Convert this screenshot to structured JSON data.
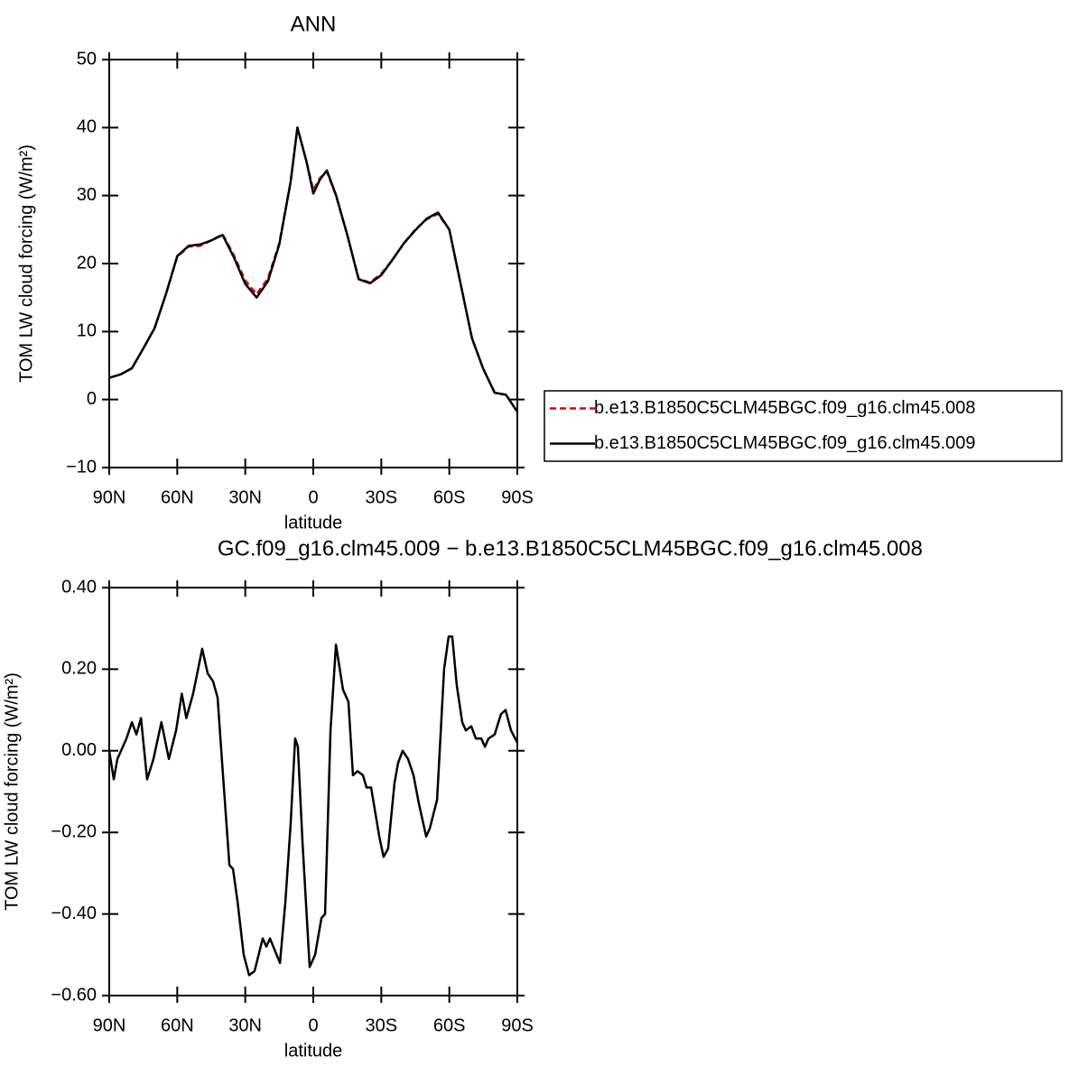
{
  "chart_data": [
    {
      "type": "line",
      "title": "ANN",
      "x_label": "latitude",
      "y_label": "TOM LW cloud forcing (W/m²)",
      "x": [
        90,
        85,
        80,
        75,
        70,
        65,
        60,
        55,
        50,
        45,
        40,
        35,
        30,
        25,
        20,
        15,
        10,
        7,
        3,
        0,
        -3,
        -6,
        -10,
        -15,
        -20,
        -25,
        -30,
        -35,
        -40,
        -45,
        -50,
        -55,
        -60,
        -65,
        -70,
        -75,
        -80,
        -85,
        -90
      ],
      "series": [
        {
          "name": "b.e13.B1850C5CLM45BGC.f09_g16.clm45.008",
          "color": "#e00000",
          "linestyle": "dashed",
          "values": [
            3.2,
            3.7,
            4.6,
            7.5,
            10.5,
            15.5,
            21,
            22.5,
            22.6,
            23.4,
            24.3,
            21.2,
            17.5,
            15.5,
            17.8,
            23,
            32,
            40,
            35,
            30.8,
            32.6,
            33.5,
            30,
            24.2,
            17.8,
            17.2,
            18.5,
            20.6,
            23,
            25,
            26.5,
            27.3,
            25,
            17,
            9,
            4.5,
            1,
            0.7,
            -1.8
          ]
        },
        {
          "name": "b.e13.B1850C5CLM45BGC.f09_g16.clm45.009",
          "color": "#000000",
          "linestyle": "solid",
          "values": [
            3.2,
            3.7,
            4.6,
            7.5,
            10.5,
            15.5,
            21.1,
            22.6,
            22.8,
            23.4,
            24.2,
            20.9,
            17,
            15,
            17.4,
            22.8,
            32,
            40,
            35,
            30.3,
            32.4,
            33.7,
            30.1,
            24.2,
            17.7,
            17.1,
            18.3,
            20.6,
            23,
            24.9,
            26.6,
            27.5,
            25,
            17,
            9,
            4.5,
            1,
            0.7,
            -1.8
          ]
        }
      ],
      "xlim": [
        90,
        -90
      ],
      "xticks": [
        {
          "value": 90,
          "label": "90N"
        },
        {
          "value": 60,
          "label": "60N"
        },
        {
          "value": 30,
          "label": "30N"
        },
        0,
        {
          "value": -30,
          "label": "30S"
        },
        {
          "value": -60,
          "label": "60S"
        },
        {
          "value": -90,
          "label": "90S"
        }
      ],
      "ylim": [
        -10,
        50
      ],
      "yticks": [
        {
          "value": -10,
          "label": "−10"
        },
        0,
        10,
        20,
        30,
        40,
        50
      ],
      "legend": "right"
    },
    {
      "type": "line",
      "title": "GC.f09_g16.clm45.009 − b.e13.B1850C5CLM45BGC.f09_g16.clm45.008",
      "x_label": "latitude",
      "y_label": "TOM LW cloud forcing (W/m²)",
      "x": [
        90,
        88,
        86.4,
        82.4,
        80,
        78,
        76,
        73.3,
        70.5,
        67,
        63.7,
        60.5,
        58,
        56,
        53,
        49,
        46.6,
        44.2,
        42.2,
        40.2,
        37,
        35.4,
        33.4,
        30.7,
        28.3,
        25.9,
        22.3,
        20.7,
        19.1,
        14.7,
        12.3,
        10,
        8,
        6.8,
        4.8,
        1.6,
        -0.8,
        -3.6,
        -5.2,
        -7.6,
        -10,
        -13.1,
        -15.5,
        -17.5,
        -19.5,
        -21.9,
        -23.5,
        -25.5,
        -29.1,
        -31,
        -33,
        -35.8,
        -37.4,
        -39.4,
        -41.8,
        -44.2,
        -46.6,
        -49.8,
        -51.4,
        -54.6,
        -57.7,
        -59.7,
        -61.3,
        -63.3,
        -65.7,
        -67.3,
        -69.7,
        -71.7,
        -74.1,
        -75.7,
        -77.3,
        -80,
        -82.8,
        -84.8,
        -87.2,
        -90
      ],
      "series": [
        {
          "color": "#000000",
          "linestyle": "solid",
          "values": [
            0.0,
            -0.07,
            -0.02,
            0.03,
            0.07,
            0.04,
            0.08,
            -0.07,
            -0.02,
            0.07,
            -0.02,
            0.05,
            0.14,
            0.08,
            0.14,
            0.25,
            0.19,
            0.17,
            0.13,
            -0.03,
            -0.28,
            -0.29,
            -0.37,
            -0.5,
            -0.55,
            -0.54,
            -0.46,
            -0.48,
            -0.46,
            -0.52,
            -0.37,
            -0.18,
            0.03,
            0.01,
            -0.22,
            -0.53,
            -0.5,
            -0.41,
            -0.4,
            0.05,
            0.26,
            0.15,
            0.12,
            -0.06,
            -0.05,
            -0.06,
            -0.09,
            -0.09,
            -0.21,
            -0.26,
            -0.24,
            -0.08,
            -0.03,
            0.0,
            -0.02,
            -0.06,
            -0.13,
            -0.21,
            -0.19,
            -0.12,
            0.2,
            0.28,
            0.28,
            0.16,
            0.07,
            0.05,
            0.06,
            0.03,
            0.03,
            0.01,
            0.03,
            0.04,
            0.09,
            0.1,
            0.05,
            0.02
          ]
        }
      ],
      "xlim": [
        90,
        -90
      ],
      "xticks": [
        {
          "value": 90,
          "label": "90N"
        },
        {
          "value": 60,
          "label": "60N"
        },
        {
          "value": 30,
          "label": "30N"
        },
        0,
        {
          "value": -30,
          "label": "30S"
        },
        {
          "value": -60,
          "label": "60S"
        },
        {
          "value": -90,
          "label": "90S"
        }
      ],
      "ylim": [
        -0.6,
        0.4
      ],
      "yticks": [
        {
          "value": -0.6,
          "label": "−0.60"
        },
        {
          "value": -0.4,
          "label": "−0.40"
        },
        {
          "value": -0.2,
          "label": "−0.20"
        },
        {
          "value": 0,
          "label": "0.00"
        },
        {
          "value": 0.2,
          "label": "0.20"
        },
        {
          "value": 0.4,
          "label": "0.40"
        }
      ]
    }
  ]
}
